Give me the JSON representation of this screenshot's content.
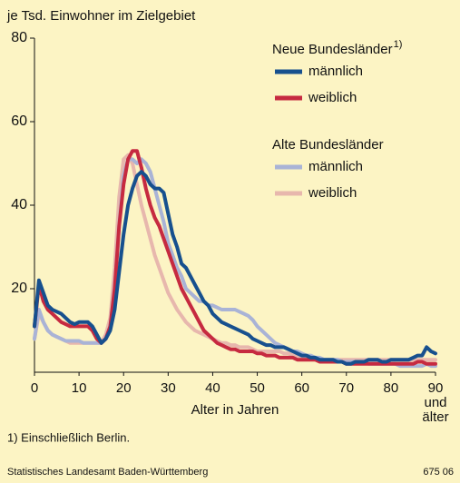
{
  "chart_data": {
    "type": "line",
    "y_label": "je Tsd. Einwohner im Zielgebiet",
    "x_label": "Alter in Jahren",
    "footnote": "1) Einschließlich Berlin.",
    "source": "Statistisches Landesamt Baden-Württemberg",
    "code": "675 06",
    "legend_groups": [
      {
        "title": "Neue Bundesländer",
        "note": "1)"
      },
      {
        "title": "Alte Bundesländer"
      }
    ],
    "xlim": [
      0,
      90
    ],
    "ylim": [
      0,
      80
    ],
    "xticks": [
      0,
      10,
      20,
      30,
      40,
      50,
      60,
      70,
      80,
      {
        "value": 90,
        "label": "90 und älter"
      }
    ],
    "yticks": [
      20,
      40,
      60,
      80
    ],
    "grid": false,
    "x": [
      0,
      1,
      2,
      3,
      4,
      5,
      6,
      7,
      8,
      9,
      10,
      11,
      12,
      13,
      14,
      15,
      16,
      17,
      18,
      19,
      20,
      21,
      22,
      23,
      24,
      25,
      26,
      27,
      28,
      29,
      30,
      31,
      32,
      33,
      34,
      35,
      36,
      37,
      38,
      39,
      40,
      41,
      42,
      43,
      44,
      45,
      46,
      47,
      48,
      49,
      50,
      51,
      52,
      53,
      54,
      55,
      56,
      57,
      58,
      59,
      60,
      61,
      62,
      63,
      64,
      65,
      66,
      67,
      68,
      69,
      70,
      71,
      72,
      73,
      74,
      75,
      76,
      77,
      78,
      79,
      80,
      81,
      82,
      83,
      84,
      85,
      86,
      87,
      88,
      89,
      90
    ],
    "series": [
      {
        "name": "männlich",
        "color": "#17508e",
        "values": [
          11,
          22,
          19,
          16,
          15,
          14.5,
          14,
          13,
          12,
          11.5,
          12,
          12,
          12,
          11,
          9,
          7,
          8,
          10,
          15,
          24,
          33,
          40,
          44,
          47,
          48,
          47,
          45,
          44,
          44,
          43,
          38,
          33,
          30,
          26,
          25,
          23,
          21,
          19,
          17,
          16,
          14,
          13,
          12,
          11.5,
          11,
          10.5,
          10,
          9.5,
          9,
          8,
          7.5,
          7,
          6.5,
          6.5,
          6,
          6,
          6,
          5.5,
          5,
          4.5,
          4,
          4,
          3.5,
          3.5,
          3,
          3,
          3,
          3,
          2.5,
          2.5,
          2,
          2,
          2.5,
          2.5,
          2.5,
          3,
          3,
          3,
          2.5,
          2.5,
          3,
          3,
          3,
          3,
          3,
          3.5,
          4,
          4,
          6,
          5,
          4.5
        ]
      },
      {
        "name": "weiblich",
        "color": "#c62a40",
        "values": [
          11,
          21,
          17,
          15,
          14,
          13,
          12,
          11.5,
          11,
          11,
          11,
          11,
          11,
          10,
          8,
          7,
          8,
          11,
          20,
          35,
          45,
          51,
          53,
          53,
          49,
          44,
          40,
          37,
          35,
          32,
          29,
          26,
          23,
          20,
          18,
          16,
          14,
          12,
          10,
          9,
          8,
          7,
          6.5,
          6,
          5.5,
          5.5,
          5,
          5,
          5,
          5,
          4.5,
          4.5,
          4,
          4,
          4,
          3.5,
          3.5,
          3.5,
          3.5,
          3,
          3,
          3,
          3,
          3,
          2.5,
          2.5,
          2.5,
          2.5,
          2.5,
          2.5,
          2,
          2,
          2,
          2,
          2,
          2,
          2,
          2,
          2,
          2,
          2,
          2,
          2,
          2,
          2,
          2,
          2.5,
          2.5,
          2,
          2,
          2
        ]
      },
      {
        "name": "männlich",
        "color": "#a9b3d6",
        "values": [
          8,
          15,
          12,
          10,
          9,
          8.5,
          8,
          7.5,
          7.5,
          7.5,
          7.5,
          7,
          7,
          7,
          7,
          7,
          8,
          11,
          20,
          35,
          47,
          51,
          51,
          50,
          51,
          50,
          48,
          44,
          40,
          36,
          31,
          28,
          25,
          23,
          20,
          19,
          18,
          17,
          17,
          16,
          16,
          15.5,
          15,
          15,
          15,
          15,
          14.5,
          14,
          13.5,
          12.5,
          11,
          10,
          9,
          8,
          7,
          6.5,
          6,
          5.5,
          5,
          5,
          4.5,
          4,
          4,
          3.5,
          3.5,
          3,
          3,
          3,
          3,
          2.5,
          2.5,
          2.5,
          2.5,
          2.5,
          2.5,
          2,
          2,
          2,
          2,
          2,
          2,
          2,
          1.5,
          1.5,
          1.5,
          1.5,
          1.5,
          1.5,
          2,
          1.5,
          1.5
        ]
      },
      {
        "name": "weiblich",
        "color": "#e7b7ad",
        "values": [
          8,
          14,
          12,
          10,
          9,
          8.5,
          8,
          7.5,
          7,
          7,
          7,
          7,
          7,
          7,
          7,
          7,
          9,
          13,
          25,
          42,
          51,
          52,
          50,
          45,
          40,
          36,
          32,
          28,
          25,
          22,
          19,
          17,
          15,
          13.5,
          12,
          11,
          10,
          9.5,
          9,
          8.5,
          8,
          7.5,
          7,
          7,
          6.5,
          6.5,
          6,
          6,
          6,
          5.5,
          5,
          5,
          5,
          5,
          5,
          5,
          4.5,
          4.5,
          4,
          4,
          3.5,
          3.5,
          3.5,
          3,
          3,
          3,
          3,
          3,
          3,
          3,
          3,
          3,
          3,
          3,
          3,
          3,
          3,
          3,
          3,
          3,
          3,
          3,
          3,
          3,
          3,
          3,
          3,
          3,
          3,
          3,
          3
        ]
      }
    ]
  }
}
